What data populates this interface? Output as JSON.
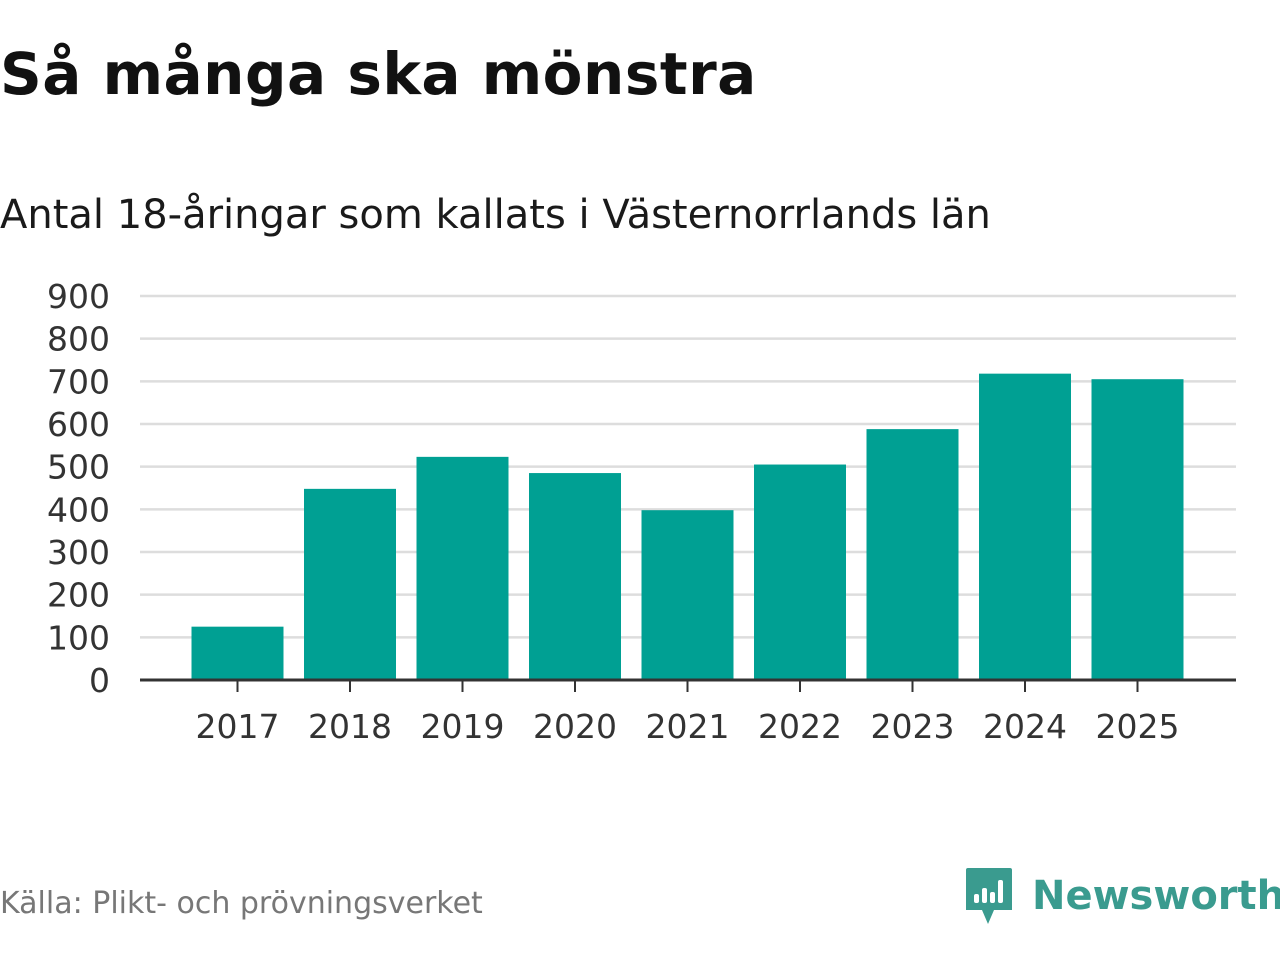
{
  "title": "Så många ska mönstra",
  "subtitle": "Antal 18-åringar som kallats i Västernorrlands län",
  "source": "Källa: Plikt- och prövningsverket",
  "brand": {
    "name": "Newsworthy",
    "icon": "newsworthy-logo-icon"
  },
  "colors": {
    "bar": "#00a093",
    "grid": "#dddddd",
    "axis": "#333333",
    "brand": "#3a9b8f"
  },
  "chart_data": {
    "type": "bar",
    "title": "Så många ska mönstra",
    "subtitle": "Antal 18-åringar som kallats i Västernorrlands län",
    "xlabel": "",
    "ylabel": "",
    "categories": [
      "2017",
      "2018",
      "2019",
      "2020",
      "2021",
      "2022",
      "2023",
      "2024",
      "2025"
    ],
    "values": [
      125,
      448,
      523,
      485,
      398,
      505,
      588,
      718,
      705
    ],
    "ylim": [
      0,
      900
    ],
    "yticks": [
      0,
      100,
      200,
      300,
      400,
      500,
      600,
      700,
      800,
      900
    ],
    "grid": true,
    "legend": "none"
  }
}
